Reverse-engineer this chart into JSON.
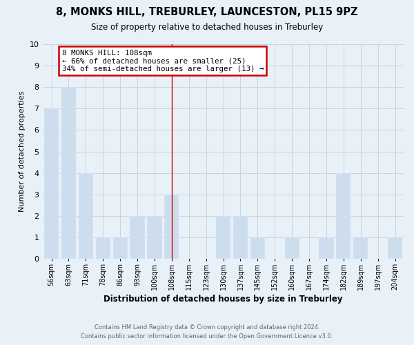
{
  "title": "8, MONKS HILL, TREBURLEY, LAUNCESTON, PL15 9PZ",
  "subtitle": "Size of property relative to detached houses in Treburley",
  "xlabel": "Distribution of detached houses by size in Treburley",
  "ylabel": "Number of detached properties",
  "footer_line1": "Contains HM Land Registry data © Crown copyright and database right 2024.",
  "footer_line2": "Contains public sector information licensed under the Open Government Licence v3.0.",
  "bin_labels": [
    "56sqm",
    "63sqm",
    "71sqm",
    "78sqm",
    "86sqm",
    "93sqm",
    "100sqm",
    "108sqm",
    "115sqm",
    "123sqm",
    "130sqm",
    "137sqm",
    "145sqm",
    "152sqm",
    "160sqm",
    "167sqm",
    "174sqm",
    "182sqm",
    "189sqm",
    "197sqm",
    "204sqm"
  ],
  "bar_heights": [
    7,
    8,
    4,
    1,
    1,
    2,
    2,
    3,
    0,
    0,
    2,
    2,
    1,
    0,
    1,
    0,
    1,
    4,
    1,
    0,
    1
  ],
  "bar_color": "#ccdded",
  "vline_color": "#cc0000",
  "vline_x": 7,
  "ylim": [
    0,
    10
  ],
  "yticks": [
    0,
    1,
    2,
    3,
    4,
    5,
    6,
    7,
    8,
    9,
    10
  ],
  "annotation_text": "8 MONKS HILL: 108sqm\n← 66% of detached houses are smaller (25)\n34% of semi-detached houses are larger (13) →",
  "annotation_box_facecolor": "#ffffff",
  "annotation_box_edgecolor": "#cc0000",
  "grid_color": "#c8d4de",
  "background_color": "#e8f0f8"
}
